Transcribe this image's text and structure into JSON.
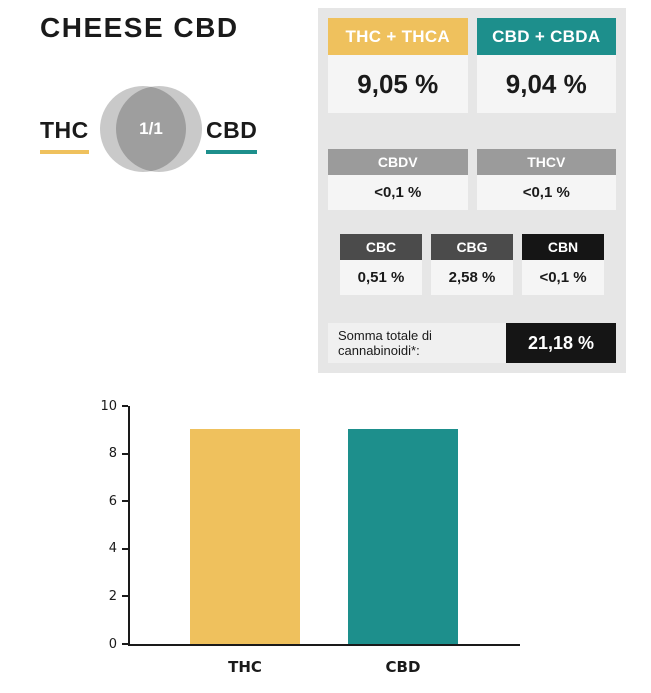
{
  "title": "CHEESE CBD",
  "ratio": {
    "thc_label": "THC",
    "cbd_label": "CBD",
    "value": "1/1"
  },
  "colors": {
    "thc_yellow": "#EFC15D",
    "cbd_teal": "#1D8F8C",
    "gray_badge": "#9B9B9B",
    "dark_badge": "#4B4B4B",
    "black_badge": "#151515",
    "panel_bg": "#E6E6E6",
    "venn_gray": "#C9C9C9"
  },
  "panel": {
    "primary": [
      {
        "label": "THC + THCA",
        "value": "9,05 %",
        "color": "#EFC15D"
      },
      {
        "label": "CBD + CBDA",
        "value": "9,04 %",
        "color": "#1D8F8C"
      }
    ],
    "secondary": [
      {
        "label": "CBDV",
        "value": "<0,1 %",
        "color": "#9B9B9B"
      },
      {
        "label": "THCV",
        "value": "<0,1 %",
        "color": "#9B9B9B"
      }
    ],
    "tertiary": [
      {
        "label": "CBC",
        "value": "0,51 %",
        "color": "#4B4B4B"
      },
      {
        "label": "CBG",
        "value": "2,58 %",
        "color": "#4B4B4B"
      },
      {
        "label": "CBN",
        "value": "<0,1 %",
        "color": "#151515"
      }
    ],
    "total": {
      "label": "Somma totale di cannabinoidi*:",
      "value": "21,18 %"
    }
  },
  "chart_data": {
    "type": "bar",
    "categories": [
      "THC",
      "CBD"
    ],
    "values": [
      9.05,
      9.04
    ],
    "colors": [
      "#EFC15D",
      "#1D8F8C"
    ],
    "title": "",
    "xlabel": "",
    "ylabel": "",
    "ylim": [
      0,
      10
    ],
    "yticks": [
      0,
      2,
      4,
      6,
      8,
      10
    ],
    "grid": false,
    "legend": false
  }
}
